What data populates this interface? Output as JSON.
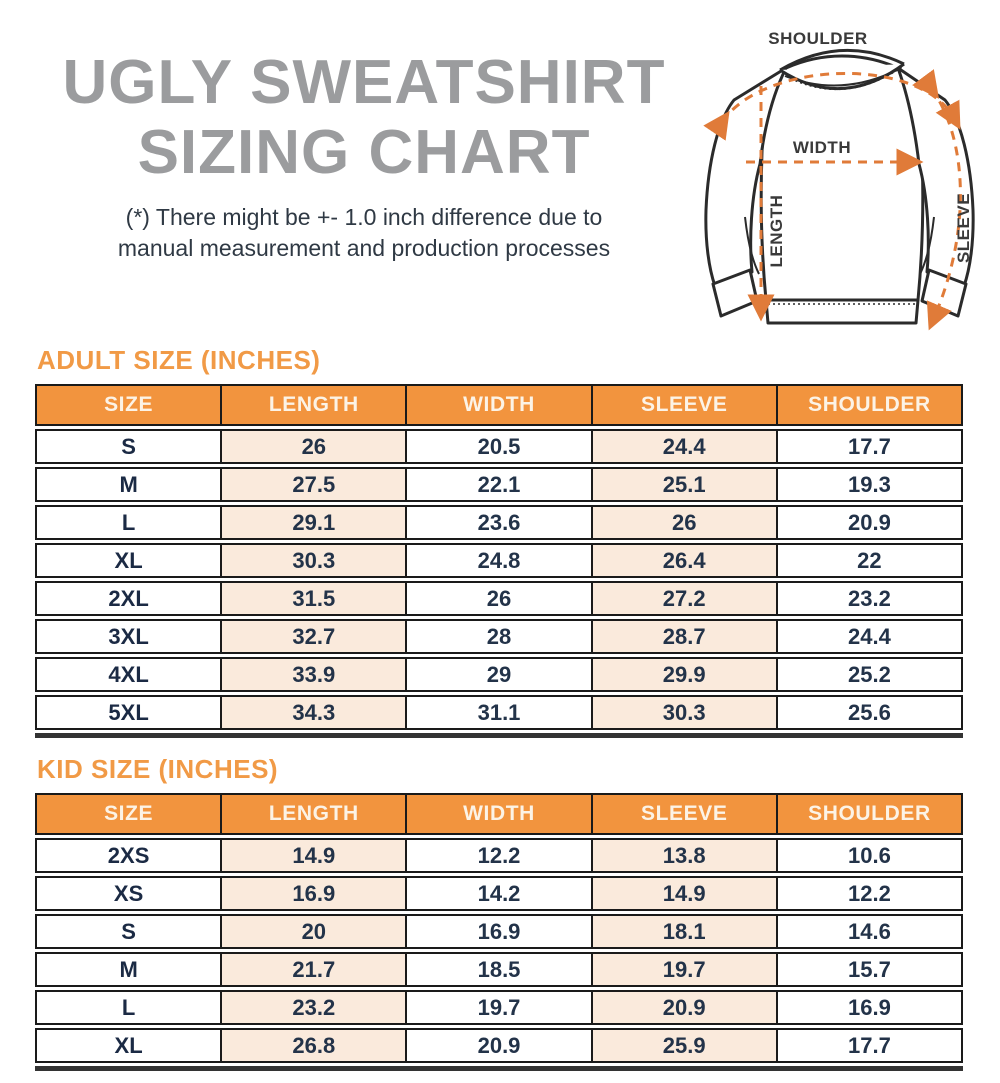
{
  "header": {
    "title_line1": "UGLY SWEATSHIRT",
    "title_line2": "SIZING CHART",
    "disclaimer_line1": "(*) There might be +- 1.0 inch difference due to",
    "disclaimer_line2": "manual measurement and production processes"
  },
  "diagram": {
    "shoulder_label": "SHOULDER",
    "width_label": "WIDTH",
    "length_label": "LENGTH",
    "sleeve_label": "SLEEVE"
  },
  "adult_table": {
    "heading": "ADULT SIZE (INCHES)",
    "columns": [
      "SIZE",
      "LENGTH",
      "WIDTH",
      "SLEEVE",
      "SHOULDER"
    ],
    "rows": [
      [
        "S",
        "26",
        "20.5",
        "24.4",
        "17.7"
      ],
      [
        "M",
        "27.5",
        "22.1",
        "25.1",
        "19.3"
      ],
      [
        "L",
        "29.1",
        "23.6",
        "26",
        "20.9"
      ],
      [
        "XL",
        "30.3",
        "24.8",
        "26.4",
        "22"
      ],
      [
        "2XL",
        "31.5",
        "26",
        "27.2",
        "23.2"
      ],
      [
        "3XL",
        "32.7",
        "28",
        "28.7",
        "24.4"
      ],
      [
        "4XL",
        "33.9",
        "29",
        "29.9",
        "25.2"
      ],
      [
        "5XL",
        "34.3",
        "31.1",
        "30.3",
        "25.6"
      ]
    ]
  },
  "kid_table": {
    "heading": "KID SIZE (INCHES)",
    "columns": [
      "SIZE",
      "LENGTH",
      "WIDTH",
      "SLEEVE",
      "SHOULDER"
    ],
    "rows": [
      [
        "2XS",
        "14.9",
        "12.2",
        "13.8",
        "10.6"
      ],
      [
        "XS",
        "16.9",
        "14.2",
        "14.9",
        "12.2"
      ],
      [
        "S",
        "20",
        "16.9",
        "18.1",
        "14.6"
      ],
      [
        "M",
        "21.7",
        "18.5",
        "19.7",
        "15.7"
      ],
      [
        "L",
        "23.2",
        "19.7",
        "20.9",
        "16.9"
      ],
      [
        "XL",
        "26.8",
        "20.9",
        "25.9",
        "17.7"
      ]
    ]
  },
  "colors": {
    "accent_orange": "#F2943E",
    "heading_orange": "#F19A46",
    "header_text": "#FCF3E6",
    "peach_cell": "#FAEADC",
    "navy_text": "#233349",
    "title_gray": "#9B9C9E",
    "arrow_orange": "#E07B39",
    "line_art": "#2B2B2B"
  }
}
